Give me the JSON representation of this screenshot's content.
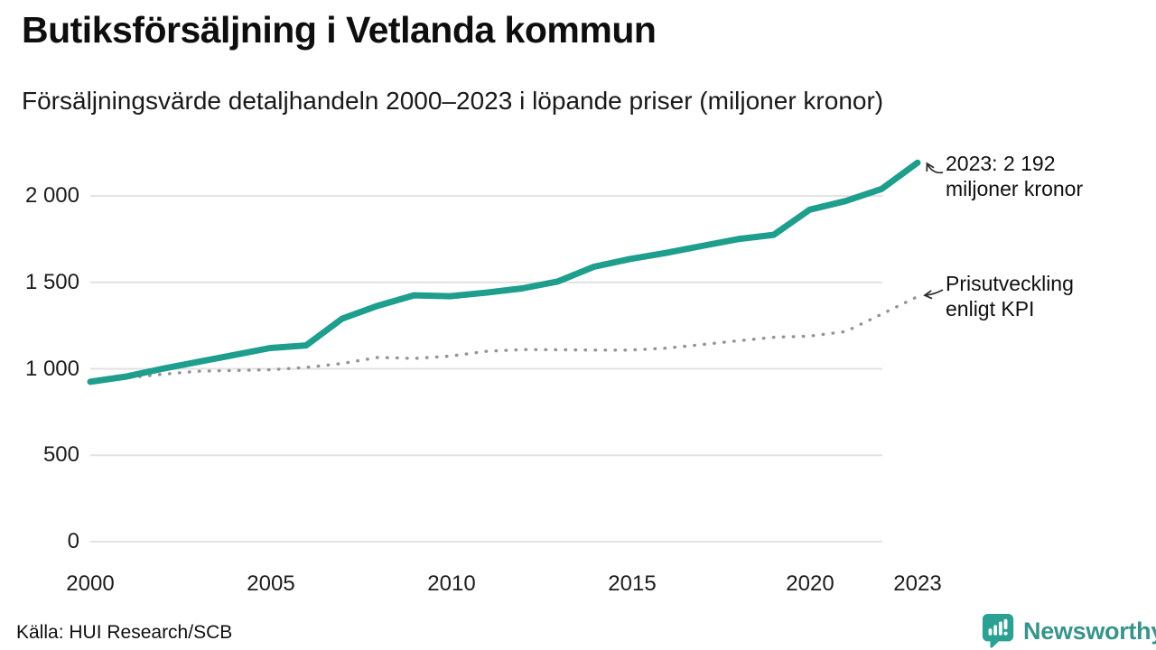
{
  "header": {
    "title": "Butiksförsäljning i Vetlanda kommun",
    "subtitle": "Försäljningsvärde detaljhandeln 2000–2023 i löpande priser (miljoner kronor)"
  },
  "annotations": {
    "latest": {
      "line1": "2023: 2 192",
      "line2": "miljoner kronor"
    },
    "kpi": {
      "line1": "Prisutveckling",
      "line2": "enligt KPI"
    }
  },
  "footer": {
    "source": "Källa: HUI Research/SCB",
    "brand": "Newsworthy"
  },
  "colors": {
    "sales_line": "#1e9e8c",
    "kpi_dots": "#93949a",
    "grid": "#e2e2e2",
    "brand_teal": "#2aa192",
    "brand_text": "#38948a"
  },
  "chart_data": {
    "type": "line",
    "title": "Butiksförsäljning i Vetlanda kommun",
    "subtitle": "Försäljningsvärde detaljhandeln 2000–2023 i löpande priser (miljoner kronor)",
    "xlabel": "",
    "ylabel": "miljoner kronor",
    "xlim": [
      2000,
      2023
    ],
    "ylim": [
      0,
      2000
    ],
    "grid": "horizontal",
    "legend": "inline-annotations",
    "x": [
      2000,
      2001,
      2002,
      2003,
      2004,
      2005,
      2006,
      2007,
      2008,
      2009,
      2010,
      2011,
      2012,
      2013,
      2014,
      2015,
      2016,
      2017,
      2018,
      2019,
      2020,
      2021,
      2022,
      2023
    ],
    "series": [
      {
        "name": "Försäljningsvärde i löpande priser",
        "style": "solid",
        "color": "#1e9e8c",
        "values": [
          925,
          955,
          1000,
          1040,
          1080,
          1120,
          1135,
          1290,
          1365,
          1425,
          1420,
          1440,
          1465,
          1505,
          1590,
          1635,
          1670,
          1710,
          1750,
          1775,
          1920,
          1970,
          2040,
          2192
        ]
      },
      {
        "name": "Prisutveckling enligt KPI",
        "style": "dotted",
        "color": "#93949a",
        "values": [
          925,
          947,
          968,
          986,
          990,
          994,
          1008,
          1031,
          1066,
          1060,
          1073,
          1101,
          1111,
          1110,
          1108,
          1108,
          1119,
          1140,
          1162,
          1182,
          1189,
          1215,
          1316,
          1418
        ]
      }
    ],
    "y_ticks": [
      {
        "value": 2000,
        "label": "2 000"
      },
      {
        "value": 1500,
        "label": "1 500"
      },
      {
        "value": 1000,
        "label": "1 000"
      },
      {
        "value": 500,
        "label": "500"
      },
      {
        "value": 0,
        "label": "0"
      }
    ],
    "x_ticks": [
      {
        "value": 2000,
        "label": "2000"
      },
      {
        "value": 2005,
        "label": "2005"
      },
      {
        "value": 2010,
        "label": "2010"
      },
      {
        "value": 2015,
        "label": "2015"
      },
      {
        "value": 2020,
        "label": "2020"
      },
      {
        "value": 2023,
        "label": "2023"
      }
    ]
  }
}
